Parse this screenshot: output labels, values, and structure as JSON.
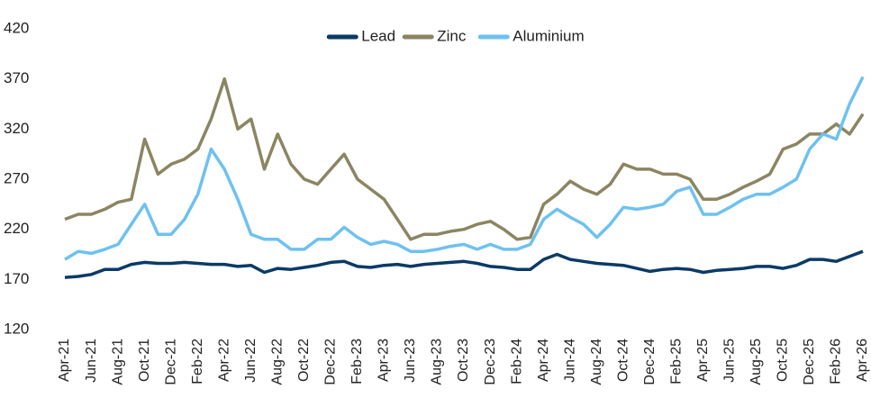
{
  "chart_data": {
    "type": "line",
    "categories": [
      "Apr-21",
      null,
      "Jun-21",
      null,
      "Aug-21",
      null,
      "Oct-21",
      null,
      "Dec-21",
      null,
      "Feb-22",
      null,
      "Apr-22",
      null,
      "Jun-22",
      null,
      "Aug-22",
      null,
      "Oct-22",
      null,
      "Dec-22",
      null,
      "Feb-23",
      null,
      "Apr-23",
      null,
      "Jun-23",
      null,
      "Aug-23",
      null,
      "Oct-23",
      null,
      "Dec-23",
      null,
      "Feb-24",
      null,
      "Apr-24",
      null,
      "Jun-24",
      null,
      "Aug-24",
      null,
      "Oct-24",
      null,
      "Dec-24",
      null,
      "Feb-25",
      null,
      "Apr-25",
      null,
      "Jun-25",
      null,
      "Aug-25",
      null,
      "Oct-25",
      null,
      "Dec-25",
      null,
      "Feb-26",
      null,
      "Apr-26"
    ],
    "series": [
      {
        "name": "Lead",
        "color": "#0b3a66",
        "values": [
          172,
          173,
          175,
          180,
          180,
          185,
          187,
          186,
          186,
          187,
          186,
          185,
          185,
          183,
          184,
          177,
          181,
          180,
          182,
          184,
          187,
          188,
          183,
          182,
          184,
          185,
          183,
          185,
          186,
          187,
          188,
          186,
          183,
          182,
          180,
          180,
          190,
          195,
          190,
          188,
          186,
          185,
          184,
          181,
          178,
          180,
          181,
          180,
          177,
          179,
          180,
          181,
          183,
          183,
          181,
          184,
          190,
          190,
          188,
          193,
          198
        ]
      },
      {
        "name": "Zinc",
        "color": "#8b8562",
        "values": [
          230,
          235,
          235,
          240,
          247,
          250,
          310,
          275,
          285,
          290,
          300,
          330,
          370,
          320,
          330,
          280,
          315,
          285,
          270,
          265,
          280,
          295,
          270,
          260,
          250,
          230,
          210,
          215,
          215,
          218,
          220,
          225,
          228,
          220,
          210,
          212,
          245,
          255,
          268,
          260,
          255,
          265,
          285,
          280,
          280,
          275,
          275,
          270,
          250,
          250,
          255,
          262,
          268,
          275,
          300,
          305,
          315,
          315,
          325,
          315,
          335
        ]
      },
      {
        "name": "Aluminium",
        "color": "#6ec1f0",
        "values": [
          190,
          198,
          196,
          200,
          205,
          225,
          245,
          215,
          215,
          230,
          255,
          300,
          280,
          250,
          215,
          210,
          210,
          200,
          200,
          210,
          210,
          222,
          212,
          205,
          208,
          205,
          198,
          198,
          200,
          203,
          205,
          200,
          205,
          200,
          200,
          205,
          230,
          240,
          232,
          225,
          212,
          225,
          242,
          240,
          242,
          245,
          258,
          262,
          235,
          235,
          242,
          250,
          255,
          255,
          262,
          270,
          300,
          315,
          310,
          345,
          372
        ]
      }
    ],
    "ylim": [
      120,
      420
    ],
    "yticks": [
      120,
      170,
      220,
      270,
      320,
      370,
      420
    ],
    "legend": "top"
  }
}
